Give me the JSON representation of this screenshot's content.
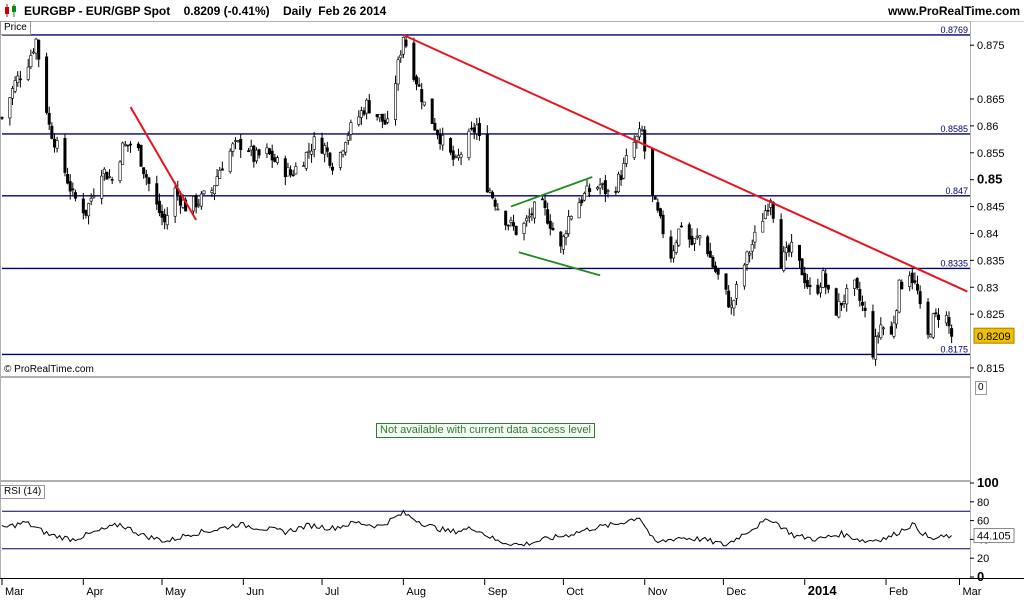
{
  "header": {
    "title": "EURGBP - EUR/GBP Spot    0.8209 (-0.41%)    Daily  Feb 26 2014",
    "brand": "www.ProRealTime.com"
  },
  "panels": {
    "price_label": "Price",
    "copyright": "© ProRealTime.com",
    "indicator_placeholder": "Not available with current data access level",
    "indicator_axis_value": "0",
    "rsi_label": "RSI (14)"
  },
  "colors": {
    "candle": "#000000",
    "level_line": "#00006e",
    "trend_red": "#e8141e",
    "pattern_green": "#1e8c1e",
    "last_price_bg": "#f0c000",
    "rsi_band": "#00006e"
  },
  "chart_data": [
    {
      "type": "candlestick",
      "symbol": "EURGBP",
      "last_price": "0.8209",
      "ylim": [
        0.8135,
        0.8795
      ],
      "y_ticks": [
        "0.875",
        "0.865",
        "0.86",
        "0.855",
        "0.85",
        "0.845",
        "0.84",
        "0.835",
        "0.83",
        "0.825",
        "0.815"
      ],
      "y_tick_values": [
        0.875,
        0.865,
        0.86,
        0.855,
        0.85,
        0.845,
        0.84,
        0.835,
        0.83,
        0.825,
        0.815
      ],
      "x_ticks": [
        "Mar",
        "Apr",
        "May",
        "Jun",
        "Jul",
        "Aug",
        "Sep",
        "Oct",
        "Nov",
        "Dec",
        "2014",
        "Feb",
        "Mar"
      ],
      "x_tick_dates": [
        "2013-03-01",
        "2013-04-01",
        "2013-05-01",
        "2013-06-01",
        "2013-07-01",
        "2013-08-01",
        "2013-09-01",
        "2013-10-01",
        "2013-11-01",
        "2013-12-01",
        "2014-01-01",
        "2014-02-01",
        "2014-03-01"
      ],
      "date_range": [
        "2013-03-01",
        "2014-03-05"
      ],
      "horizontal_levels": [
        "0.8769",
        "0.8585",
        "0.847",
        "0.8335",
        "0.8175"
      ],
      "close_path": [
        [
          "2013-03-01",
          0.8615
        ],
        [
          "2013-03-06",
          0.868
        ],
        [
          "2013-03-11",
          0.872
        ],
        [
          "2013-03-14",
          0.876
        ],
        [
          "2013-03-19",
          0.86
        ],
        [
          "2013-03-22",
          0.856
        ],
        [
          "2013-03-28",
          0.847
        ],
        [
          "2013-04-02",
          0.844
        ],
        [
          "2013-04-08",
          0.852
        ],
        [
          "2013-04-12",
          0.85
        ],
        [
          "2013-04-16",
          0.856
        ],
        [
          "2013-04-21",
          0.857
        ],
        [
          "2013-04-24",
          0.852
        ],
        [
          "2013-04-29",
          0.845
        ],
        [
          "2013-05-02",
          0.842
        ],
        [
          "2013-05-06",
          0.848
        ],
        [
          "2013-05-10",
          0.845
        ],
        [
          "2013-05-15",
          0.846
        ],
        [
          "2013-05-20",
          0.848
        ],
        [
          "2013-05-23",
          0.852
        ],
        [
          "2013-05-28",
          0.856
        ],
        [
          "2013-06-02",
          0.857
        ],
        [
          "2013-06-05",
          0.854
        ],
        [
          "2013-06-10",
          0.855
        ],
        [
          "2013-06-14",
          0.853
        ],
        [
          "2013-06-19",
          0.851
        ],
        [
          "2013-06-24",
          0.854
        ],
        [
          "2013-06-28",
          0.857
        ],
        [
          "2013-07-02",
          0.856
        ],
        [
          "2013-07-06",
          0.852
        ],
        [
          "2013-07-10",
          0.858
        ],
        [
          "2013-07-14",
          0.861
        ],
        [
          "2013-07-18",
          0.864
        ],
        [
          "2013-07-22",
          0.862
        ],
        [
          "2013-07-26",
          0.86
        ],
        [
          "2013-08-01",
          0.8769
        ],
        [
          "2013-08-05",
          0.87
        ],
        [
          "2013-08-09",
          0.864
        ],
        [
          "2013-08-13",
          0.86
        ],
        [
          "2013-08-17",
          0.856
        ],
        [
          "2013-08-21",
          0.853
        ],
        [
          "2013-08-25",
          0.857
        ],
        [
          "2013-08-29",
          0.86
        ],
        [
          "2013-09-02",
          0.849
        ],
        [
          "2013-09-06",
          0.845
        ],
        [
          "2013-09-10",
          0.842
        ],
        [
          "2013-09-14",
          0.84
        ],
        [
          "2013-09-18",
          0.843
        ],
        [
          "2013-09-22",
          0.846
        ],
        [
          "2013-09-26",
          0.842
        ],
        [
          "2013-09-30",
          0.837
        ],
        [
          "2013-10-03",
          0.843
        ],
        [
          "2013-10-07",
          0.846
        ],
        [
          "2013-10-11",
          0.848
        ],
        [
          "2013-10-15",
          0.849
        ],
        [
          "2013-10-19",
          0.847
        ],
        [
          "2013-10-23",
          0.851
        ],
        [
          "2013-10-27",
          0.856
        ],
        [
          "2013-10-31",
          0.859
        ],
        [
          "2013-11-03",
          0.848
        ],
        [
          "2013-11-07",
          0.842
        ],
        [
          "2013-11-11",
          0.836
        ],
        [
          "2013-11-15",
          0.842
        ],
        [
          "2013-11-19",
          0.838
        ],
        [
          "2013-11-23",
          0.84
        ],
        [
          "2013-11-27",
          0.834
        ],
        [
          "2013-12-01",
          0.83
        ],
        [
          "2013-12-04",
          0.826
        ],
        [
          "2013-12-08",
          0.833
        ],
        [
          "2013-12-12",
          0.838
        ],
        [
          "2013-12-16",
          0.843
        ],
        [
          "2013-12-19",
          0.847
        ],
        [
          "2013-12-23",
          0.835
        ],
        [
          "2013-12-27",
          0.837
        ],
        [
          "2013-12-31",
          0.833
        ],
        [
          "2014-01-04",
          0.828
        ],
        [
          "2014-01-08",
          0.832
        ],
        [
          "2014-01-12",
          0.825
        ],
        [
          "2014-01-16",
          0.828
        ],
        [
          "2014-01-20",
          0.83
        ],
        [
          "2014-01-24",
          0.825
        ],
        [
          "2014-01-27",
          0.818
        ],
        [
          "2014-01-30",
          0.823
        ],
        [
          "2014-02-03",
          0.821
        ],
        [
          "2014-02-06",
          0.83
        ],
        [
          "2014-02-10",
          0.833
        ],
        [
          "2014-02-13",
          0.829
        ],
        [
          "2014-02-16",
          0.819
        ],
        [
          "2014-02-19",
          0.824
        ],
        [
          "2014-02-23",
          0.826
        ],
        [
          "2014-02-26",
          0.8209
        ]
      ],
      "annotations": [
        {
          "type": "trend_line",
          "color": "red",
          "from": [
            "2013-04-19",
            0.8635
          ],
          "to": [
            "2013-05-14",
            0.8425
          ]
        },
        {
          "type": "trend_line",
          "color": "red",
          "from": [
            "2013-08-01",
            0.8769
          ],
          "to": [
            "2014-03-04",
            0.8292
          ]
        },
        {
          "type": "trend_line",
          "color": "green",
          "from": [
            "2013-09-11",
            0.845
          ],
          "to": [
            "2013-10-12",
            0.8505
          ]
        },
        {
          "type": "trend_line",
          "color": "green",
          "from": [
            "2013-09-14",
            0.8365
          ],
          "to": [
            "2013-10-15",
            0.8322
          ]
        }
      ]
    },
    {
      "type": "line",
      "name": "RSI (14)",
      "last_value": "44.105",
      "ylim": [
        0,
        100
      ],
      "y_ticks": [
        "100",
        "80",
        "60",
        "40",
        "20",
        "0"
      ],
      "y_tick_values": [
        100,
        80,
        60,
        40,
        20,
        0
      ],
      "bands": [
        70,
        30
      ],
      "points": [
        [
          "2013-03-01",
          52
        ],
        [
          "2013-03-10",
          58
        ],
        [
          "2013-03-19",
          45
        ],
        [
          "2013-03-28",
          40
        ],
        [
          "2013-04-06",
          48
        ],
        [
          "2013-04-15",
          56
        ],
        [
          "2013-04-24",
          44
        ],
        [
          "2013-05-03",
          38
        ],
        [
          "2013-05-12",
          46
        ],
        [
          "2013-05-21",
          50
        ],
        [
          "2013-05-30",
          56
        ],
        [
          "2013-06-08",
          52
        ],
        [
          "2013-06-17",
          48
        ],
        [
          "2013-06-26",
          55
        ],
        [
          "2013-07-05",
          52
        ],
        [
          "2013-07-14",
          58
        ],
        [
          "2013-07-23",
          54
        ],
        [
          "2013-08-01",
          68
        ],
        [
          "2013-08-10",
          55
        ],
        [
          "2013-08-19",
          48
        ],
        [
          "2013-08-28",
          52
        ],
        [
          "2013-09-06",
          38
        ],
        [
          "2013-09-15",
          34
        ],
        [
          "2013-09-24",
          40
        ],
        [
          "2013-10-03",
          45
        ],
        [
          "2013-10-12",
          52
        ],
        [
          "2013-10-21",
          56
        ],
        [
          "2013-10-30",
          64
        ],
        [
          "2013-11-05",
          36
        ],
        [
          "2013-11-14",
          42
        ],
        [
          "2013-11-23",
          40
        ],
        [
          "2013-12-02",
          34
        ],
        [
          "2013-12-11",
          50
        ],
        [
          "2013-12-19",
          62
        ],
        [
          "2013-12-28",
          44
        ],
        [
          "2014-01-06",
          40
        ],
        [
          "2014-01-15",
          46
        ],
        [
          "2014-01-24",
          38
        ],
        [
          "2014-02-02",
          42
        ],
        [
          "2014-02-11",
          56
        ],
        [
          "2014-02-18",
          40
        ],
        [
          "2014-02-26",
          44.105
        ]
      ]
    }
  ]
}
